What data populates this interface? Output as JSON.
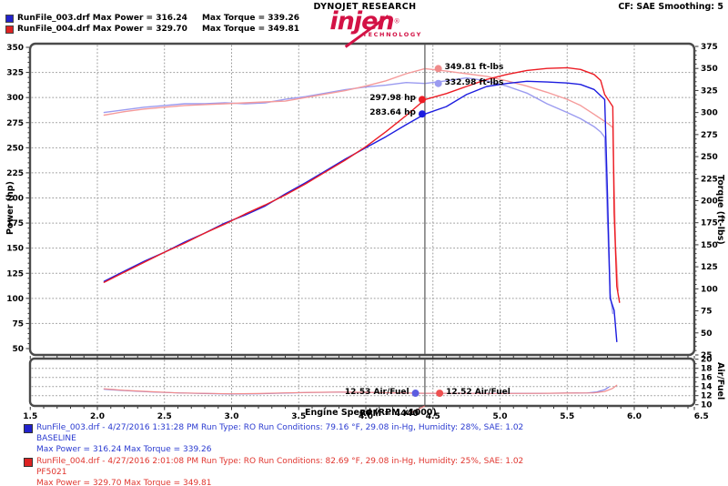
{
  "header": {
    "legend": [
      {
        "swatch_color": "#2222cc",
        "left": "RunFile_003.drf Max Power = 316.24",
        "right": "Max Torque = 339.26"
      },
      {
        "swatch_color": "#dd2222",
        "left": "RunFile_004.drf Max Power = 329.70",
        "right": "Max Torque = 349.81"
      }
    ],
    "brand_line": "DYNOJET RESEARCH",
    "logo_text": "injen",
    "logo_reg": "®",
    "logo_sub": "TECHNOLOGY",
    "settings": "CF: SAE  Smoothing: 5"
  },
  "chart_data": {
    "type": "line",
    "title": "",
    "xlabel": "Engine Speed (RPM x1000)",
    "ylabel_left": "Power (hp)",
    "ylabel_right": "Torque (ft-lbs)",
    "ylabel_af": "Air/Fuel",
    "xlim": [
      1.5,
      6.5
    ],
    "power_lim": [
      50,
      350
    ],
    "torque_lim": [
      25,
      375
    ],
    "af_lim": [
      10,
      20
    ],
    "x_ticks": [
      1.5,
      2.0,
      2.5,
      3.0,
      3.5,
      4.0,
      4.5,
      5.0,
      5.5,
      6.0,
      6.5
    ],
    "power_ticks": [
      50,
      75,
      100,
      125,
      150,
      175,
      200,
      225,
      250,
      275,
      300,
      325,
      350
    ],
    "torque_ticks": [
      25,
      50,
      75,
      100,
      125,
      150,
      175,
      200,
      225,
      250,
      275,
      300,
      325,
      350,
      375
    ],
    "af_ticks": [
      10,
      12,
      14,
      16,
      18,
      20
    ],
    "grid": true,
    "grid_color": "#9a9a9a",
    "cursor": {
      "rpm": 4.44,
      "label": "RPM = 4440"
    },
    "series": [
      {
        "name": "RunFile_003 Power (hp)",
        "axis": "power",
        "color": "#1c1cdf",
        "width": 1.4,
        "points": [
          [
            2.05,
            117
          ],
          [
            2.2,
            127
          ],
          [
            2.35,
            137
          ],
          [
            2.5,
            146
          ],
          [
            2.65,
            156
          ],
          [
            2.8,
            165
          ],
          [
            2.95,
            175
          ],
          [
            3.1,
            183
          ],
          [
            3.25,
            192
          ],
          [
            3.4,
            204
          ],
          [
            3.55,
            215
          ],
          [
            3.7,
            227
          ],
          [
            3.85,
            239
          ],
          [
            4.0,
            250
          ],
          [
            4.15,
            261
          ],
          [
            4.3,
            273
          ],
          [
            4.44,
            283.6
          ],
          [
            4.6,
            291
          ],
          [
            4.75,
            303
          ],
          [
            4.9,
            311
          ],
          [
            5.05,
            314
          ],
          [
            5.2,
            316.2
          ],
          [
            5.35,
            315.5
          ],
          [
            5.5,
            314.5
          ],
          [
            5.6,
            313
          ],
          [
            5.7,
            308
          ],
          [
            5.78,
            298
          ],
          [
            5.8,
            205
          ],
          [
            5.82,
            100
          ],
          [
            5.85,
            88
          ],
          [
            5.87,
            57
          ]
        ]
      },
      {
        "name": "RunFile_004 Power (hp)",
        "axis": "power",
        "color": "#ec1c24",
        "width": 1.4,
        "points": [
          [
            2.05,
            116
          ],
          [
            2.2,
            126
          ],
          [
            2.35,
            136
          ],
          [
            2.5,
            146
          ],
          [
            2.65,
            155
          ],
          [
            2.8,
            165
          ],
          [
            2.95,
            174
          ],
          [
            3.1,
            184
          ],
          [
            3.25,
            193
          ],
          [
            3.4,
            203
          ],
          [
            3.55,
            214
          ],
          [
            3.7,
            226
          ],
          [
            3.85,
            238
          ],
          [
            4.0,
            251
          ],
          [
            4.15,
            266
          ],
          [
            4.3,
            282
          ],
          [
            4.44,
            298
          ],
          [
            4.6,
            304
          ],
          [
            4.75,
            311
          ],
          [
            4.9,
            318
          ],
          [
            5.05,
            323
          ],
          [
            5.2,
            327
          ],
          [
            5.35,
            329
          ],
          [
            5.5,
            329.7
          ],
          [
            5.6,
            328
          ],
          [
            5.7,
            323
          ],
          [
            5.75,
            317
          ],
          [
            5.78,
            303
          ],
          [
            5.81,
            297
          ],
          [
            5.84,
            291
          ],
          [
            5.85,
            185
          ],
          [
            5.87,
            112
          ],
          [
            5.89,
            96
          ]
        ]
      },
      {
        "name": "RunFile_003 Torque (ft-lbs)",
        "axis": "torque",
        "color": "#9b9bf0",
        "width": 1.4,
        "points": [
          [
            2.05,
            300
          ],
          [
            2.2,
            303
          ],
          [
            2.35,
            306
          ],
          [
            2.5,
            308
          ],
          [
            2.65,
            310
          ],
          [
            2.8,
            310
          ],
          [
            2.95,
            311
          ],
          [
            3.1,
            310
          ],
          [
            3.25,
            311
          ],
          [
            3.4,
            315
          ],
          [
            3.55,
            318
          ],
          [
            3.7,
            322
          ],
          [
            3.85,
            326
          ],
          [
            4.0,
            329
          ],
          [
            4.15,
            331
          ],
          [
            4.3,
            334
          ],
          [
            4.44,
            333
          ],
          [
            4.6,
            336
          ],
          [
            4.75,
            339.3
          ],
          [
            4.9,
            336
          ],
          [
            5.05,
            330
          ],
          [
            5.2,
            322
          ],
          [
            5.35,
            310
          ],
          [
            5.5,
            300
          ],
          [
            5.6,
            293
          ],
          [
            5.7,
            284
          ],
          [
            5.75,
            278
          ],
          [
            5.78,
            272
          ],
          [
            5.8,
            180
          ],
          [
            5.82,
            95
          ],
          [
            5.84,
            72
          ]
        ]
      },
      {
        "name": "RunFile_004 Torque (ft-lbs)",
        "axis": "torque",
        "color": "#f59b9b",
        "width": 1.4,
        "points": [
          [
            2.05,
            297
          ],
          [
            2.2,
            301
          ],
          [
            2.35,
            304
          ],
          [
            2.5,
            306
          ],
          [
            2.65,
            308
          ],
          [
            2.8,
            309
          ],
          [
            2.95,
            310
          ],
          [
            3.1,
            311
          ],
          [
            3.25,
            312
          ],
          [
            3.4,
            313
          ],
          [
            3.55,
            317
          ],
          [
            3.7,
            321
          ],
          [
            3.85,
            325
          ],
          [
            4.0,
            330
          ],
          [
            4.15,
            336
          ],
          [
            4.3,
            344
          ],
          [
            4.44,
            349.8
          ],
          [
            4.6,
            347
          ],
          [
            4.75,
            344
          ],
          [
            4.9,
            341
          ],
          [
            5.05,
            336
          ],
          [
            5.2,
            330
          ],
          [
            5.35,
            323
          ],
          [
            5.5,
            315
          ],
          [
            5.6,
            308
          ],
          [
            5.7,
            298
          ],
          [
            5.75,
            293
          ],
          [
            5.8,
            288
          ],
          [
            5.84,
            283
          ],
          [
            5.86,
            150
          ],
          [
            5.88,
            98
          ]
        ]
      },
      {
        "name": "RunFile_003 Air/Fuel",
        "axis": "af",
        "color": "#8080e8",
        "width": 1.2,
        "points": [
          [
            2.05,
            13.4
          ],
          [
            2.2,
            13.1
          ],
          [
            2.4,
            12.8
          ],
          [
            2.6,
            12.6
          ],
          [
            2.8,
            12.45
          ],
          [
            3.0,
            12.35
          ],
          [
            3.2,
            12.4
          ],
          [
            3.4,
            12.55
          ],
          [
            3.6,
            12.7
          ],
          [
            3.8,
            12.75
          ],
          [
            4.0,
            12.7
          ],
          [
            4.2,
            12.6
          ],
          [
            4.44,
            12.53
          ],
          [
            4.7,
            12.5
          ],
          [
            5.0,
            12.5
          ],
          [
            5.3,
            12.5
          ],
          [
            5.5,
            12.55
          ],
          [
            5.65,
            12.6
          ],
          [
            5.72,
            12.8
          ],
          [
            5.78,
            13.3
          ],
          [
            5.81,
            13.9
          ]
        ]
      },
      {
        "name": "RunFile_004 Air/Fuel",
        "axis": "af",
        "color": "#f28b8b",
        "width": 1.2,
        "points": [
          [
            2.05,
            13.5
          ],
          [
            2.2,
            13.15
          ],
          [
            2.4,
            12.85
          ],
          [
            2.6,
            12.6
          ],
          [
            2.8,
            12.5
          ],
          [
            3.0,
            12.4
          ],
          [
            3.2,
            12.45
          ],
          [
            3.4,
            12.6
          ],
          [
            3.6,
            12.72
          ],
          [
            3.8,
            12.78
          ],
          [
            4.0,
            12.72
          ],
          [
            4.2,
            12.62
          ],
          [
            4.44,
            12.52
          ],
          [
            4.7,
            12.5
          ],
          [
            5.0,
            12.48
          ],
          [
            5.3,
            12.5
          ],
          [
            5.5,
            12.55
          ],
          [
            5.7,
            12.6
          ],
          [
            5.78,
            12.9
          ],
          [
            5.84,
            13.6
          ],
          [
            5.87,
            14.3
          ]
        ]
      }
    ],
    "markers": [
      {
        "label": "349.81 ft-lbs",
        "axis": "torque",
        "rpm": 4.54,
        "value": 349.81,
        "color": "#f08b8b",
        "side": "right"
      },
      {
        "label": "332.98 ft-lbs",
        "axis": "torque",
        "rpm": 4.54,
        "value": 332.98,
        "color": "#9b9bf0",
        "side": "right"
      },
      {
        "label": "297.98 hp",
        "axis": "power",
        "rpm": 4.42,
        "value": 297.98,
        "color": "#ec1c24",
        "side": "left"
      },
      {
        "label": "283.64 hp",
        "axis": "power",
        "rpm": 4.42,
        "value": 283.64,
        "color": "#1c1cdf",
        "side": "left"
      },
      {
        "label": "12.53 Air/Fuel",
        "axis": "af",
        "rpm": 4.37,
        "value": 12.53,
        "color": "#5c5ce0",
        "side": "left"
      },
      {
        "label": "12.52 Air/Fuel",
        "axis": "af",
        "rpm": 4.55,
        "value": 12.52,
        "color": "#ee5050",
        "side": "right"
      }
    ]
  },
  "footer": {
    "runs": [
      {
        "color": "#2a3ad0",
        "swatch_color": "#2222cc",
        "line1": "RunFile_003.drf - 4/27/2016 1:31:28 PM  Run Type: RO  Run Conditions: 79.16 °F, 29.08 in-Hg,  Humidity:  28%, SAE: 1.02",
        "line2": "BASELINE",
        "line3": "Max Power = 316.24  Max Torque = 339.26"
      },
      {
        "color": "#e0352e",
        "swatch_color": "#dd2222",
        "line1": "RunFile_004.drf - 4/27/2016 2:01:08 PM  Run Type: RO  Run Conditions: 82.69 °F, 29.08 in-Hg,  Humidity:  25%, SAE: 1.02",
        "line2": "PF5021",
        "line3": "Max Power = 329.70  Max Torque = 349.81"
      }
    ]
  }
}
